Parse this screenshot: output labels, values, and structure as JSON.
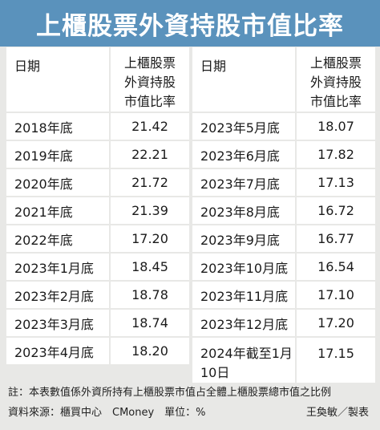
{
  "title": "上櫃股票外資持股市值比率",
  "header": {
    "date_label": "日期",
    "ratio_label_line1": "上櫃股票",
    "ratio_label_line2": "外資持股",
    "ratio_label_line3": "市值比率"
  },
  "left_rows": [
    {
      "date": "2018年底",
      "value": "21.42"
    },
    {
      "date": "2019年底",
      "value": "22.21"
    },
    {
      "date": "2020年底",
      "value": "21.72"
    },
    {
      "date": "2021年底",
      "value": "21.39"
    },
    {
      "date": "2022年底",
      "value": "17.20"
    },
    {
      "date": "2023年1月底",
      "value": "18.45"
    },
    {
      "date": "2023年2月底",
      "value": "18.78"
    },
    {
      "date": "2023年3月底",
      "value": "18.74"
    },
    {
      "date": "2023年4月底",
      "value": "18.20"
    }
  ],
  "right_rows": [
    {
      "date": "2023年5月底",
      "value": "18.07"
    },
    {
      "date": "2023年6月底",
      "value": "17.82"
    },
    {
      "date": "2023年7月底",
      "value": "17.13"
    },
    {
      "date": "2023年8月底",
      "value": "16.72"
    },
    {
      "date": "2023年9月底",
      "value": "16.77"
    },
    {
      "date": "2023年10月底",
      "value": "16.54"
    },
    {
      "date": "2023年11月底",
      "value": "17.10"
    },
    {
      "date": "2023年12月底",
      "value": "17.20"
    },
    {
      "date_line1": "2024年截至1月",
      "date_line2": "10日",
      "value": "17.15"
    }
  ],
  "footer": {
    "note": "註：本表數值係外資所持有上櫃股票市值占全體上櫃股票總市值之比例",
    "source": "資料來源：櫃買中心　CMoney　單位：%",
    "credit": "王奐敏／製表"
  }
}
